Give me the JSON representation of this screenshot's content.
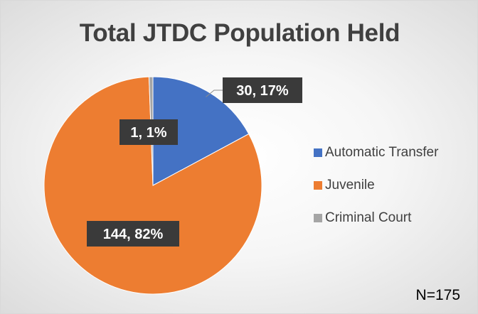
{
  "chart_data": {
    "type": "pie",
    "title": "Total JTDC Population Held",
    "slices": [
      {
        "label": "Automatic Transfer",
        "value": 30,
        "percent": 17,
        "color": "#4472c4",
        "data_label": "30, 17%"
      },
      {
        "label": "Juvenile",
        "value": 144,
        "percent": 82,
        "color": "#ed7d31",
        "data_label": "144, 82%"
      },
      {
        "label": "Criminal Court",
        "value": 1,
        "percent": 1,
        "color": "#a5a5a5",
        "data_label": "1, 1%"
      }
    ],
    "legend_position": "right",
    "note": "N=175"
  }
}
